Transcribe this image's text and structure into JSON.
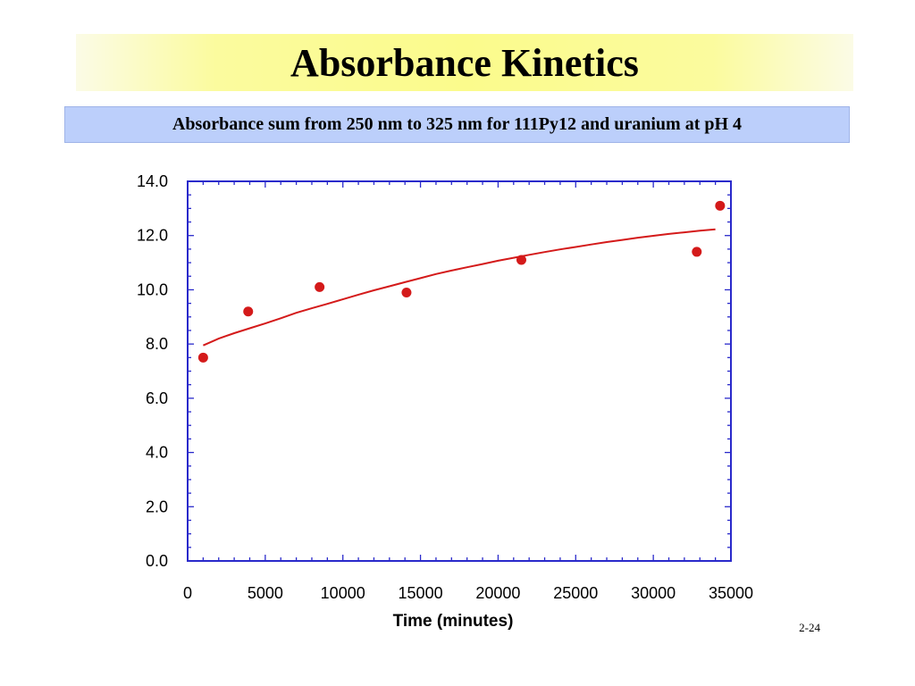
{
  "slide": {
    "title": "Absorbance Kinetics",
    "subtitle": "Absorbance sum from 250 nm to 325 nm for 111Py12 and uranium at pH 4",
    "page_number": "2-24"
  },
  "colors": {
    "title_band": "#fbfb8c",
    "subtitle_band": "#bccffb",
    "axis": "#2a2acb",
    "series": "#d41a1a"
  },
  "chart_data": {
    "type": "scatter",
    "title": "",
    "xlabel": "Time (minutes)",
    "ylabel": "",
    "xlim": [
      0,
      35000
    ],
    "ylim": [
      0,
      14
    ],
    "x_ticks": [
      "0",
      "5000",
      "10000",
      "15000",
      "20000",
      "25000",
      "30000",
      "35000"
    ],
    "x_tick_values": [
      0,
      5000,
      10000,
      15000,
      20000,
      25000,
      30000,
      35000
    ],
    "y_ticks": [
      "0.0",
      "2.0",
      "4.0",
      "6.0",
      "8.0",
      "10.0",
      "12.0",
      "14.0"
    ],
    "y_tick_values": [
      0,
      2,
      4,
      6,
      8,
      10,
      12,
      14
    ],
    "grid": false,
    "series": [
      {
        "kind": "points",
        "x": [
          1000,
          3900,
          8500,
          14100,
          21500,
          32800,
          34300
        ],
        "y": [
          7.5,
          9.2,
          10.1,
          9.9,
          11.1,
          11.4,
          13.1
        ]
      },
      {
        "kind": "fit-line",
        "x": [
          1000,
          2000,
          3000,
          4000,
          5000,
          6000,
          7000,
          8000,
          9000,
          10000,
          11000,
          12000,
          13000,
          14000,
          15000,
          16000,
          17000,
          18000,
          19000,
          20000,
          21000,
          22000,
          23000,
          24000,
          25000,
          26000,
          27000,
          28000,
          29000,
          30000,
          31000,
          32000,
          33000,
          34000
        ],
        "y": [
          7.95,
          8.2,
          8.4,
          8.58,
          8.76,
          8.95,
          9.15,
          9.32,
          9.48,
          9.65,
          9.82,
          9.98,
          10.13,
          10.28,
          10.43,
          10.58,
          10.71,
          10.83,
          10.95,
          11.07,
          11.18,
          11.29,
          11.39,
          11.49,
          11.58,
          11.67,
          11.76,
          11.84,
          11.92,
          11.99,
          12.06,
          12.12,
          12.18,
          12.23
        ]
      }
    ]
  }
}
